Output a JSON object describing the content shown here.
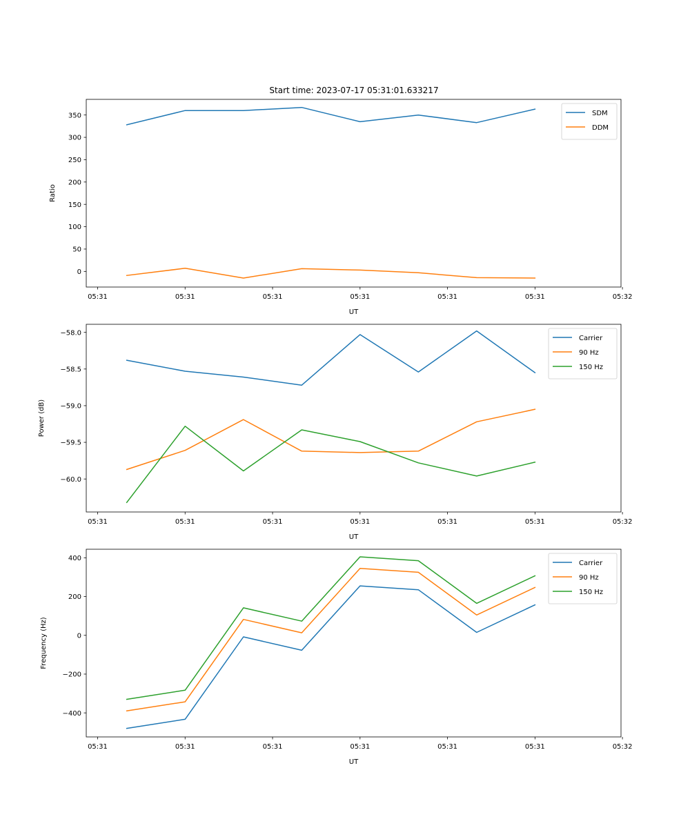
{
  "figure": {
    "title": "Start time: 2023-07-17 05:31:01.633217"
  },
  "colors": {
    "blue": "#1f77b4",
    "orange": "#ff7f0e",
    "green": "#2ca02c"
  },
  "chart_data": [
    {
      "id": "ratio",
      "type": "line",
      "title": "Start time: 2023-07-17 05:31:01.633217",
      "xlabel": "UT",
      "ylabel": "Ratio",
      "x": [
        1,
        2,
        3,
        4,
        5,
        6,
        7,
        8
      ],
      "xlim": [
        0.305,
        9.475
      ],
      "xticks": [
        0.5,
        2,
        3.5,
        5,
        6.5,
        8,
        9.5
      ],
      "xtick_labels": [
        "05:31",
        "05:31",
        "05:31",
        "05:31",
        "05:31",
        "05:31",
        "05:32"
      ],
      "ylim": [
        -35,
        385
      ],
      "yticks": [
        0,
        50,
        100,
        150,
        200,
        250,
        300,
        350
      ],
      "ytick_labels": [
        "0",
        "50",
        "100",
        "150",
        "200",
        "250",
        "300",
        "350"
      ],
      "legend": "top-right",
      "series": [
        {
          "name": "SDM",
          "color": "#1f77b4",
          "values": [
            328,
            360,
            360,
            367,
            335,
            350,
            333,
            363
          ]
        },
        {
          "name": "DDM",
          "color": "#ff7f0e",
          "values": [
            -9,
            7,
            -15,
            6,
            3,
            -3,
            -14,
            -15
          ]
        }
      ]
    },
    {
      "id": "power",
      "type": "line",
      "xlabel": "UT",
      "ylabel": "Power (dB)",
      "x": [
        1,
        2,
        3,
        4,
        5,
        6,
        7,
        8
      ],
      "xlim": [
        0.305,
        9.475
      ],
      "xticks": [
        0.5,
        2,
        3.5,
        5,
        6.5,
        8,
        9.5
      ],
      "xtick_labels": [
        "05:31",
        "05:31",
        "05:31",
        "05:31",
        "05:31",
        "05:31",
        "05:32"
      ],
      "ylim": [
        -60.45,
        -57.89
      ],
      "yticks": [
        -60.0,
        -59.5,
        -59.0,
        -58.5,
        -58.0
      ],
      "ytick_labels": [
        "−60.0",
        "−59.5",
        "−59.0",
        "−58.5",
        "−58.0"
      ],
      "legend": "top-right",
      "series": [
        {
          "name": "Carrier",
          "color": "#1f77b4",
          "values": [
            -58.38,
            -58.53,
            -58.61,
            -58.72,
            -58.03,
            -58.54,
            -57.98,
            -58.55
          ]
        },
        {
          "name": "90 Hz",
          "color": "#ff7f0e",
          "values": [
            -59.87,
            -59.61,
            -59.19,
            -59.62,
            -59.64,
            -59.62,
            -59.22,
            -59.05
          ]
        },
        {
          "name": "150 Hz",
          "color": "#2ca02c",
          "values": [
            -60.32,
            -59.28,
            -59.89,
            -59.33,
            -59.49,
            -59.78,
            -59.96,
            -59.77
          ]
        }
      ]
    },
    {
      "id": "frequency",
      "type": "line",
      "xlabel": "UT",
      "ylabel": "Frequency (Hz)",
      "x": [
        1,
        2,
        3,
        4,
        5,
        6,
        7,
        8
      ],
      "xlim": [
        0.305,
        9.475
      ],
      "xticks": [
        0.5,
        2,
        3.5,
        5,
        6.5,
        8,
        9.5
      ],
      "xtick_labels": [
        "05:31",
        "05:31",
        "05:31",
        "05:31",
        "05:31",
        "05:31",
        "05:32"
      ],
      "ylim": [
        -524,
        444
      ],
      "yticks": [
        -400,
        -200,
        0,
        200,
        400
      ],
      "ytick_labels": [
        "−400",
        "−200",
        "0",
        "200",
        "400"
      ],
      "legend": "top-right",
      "series": [
        {
          "name": "Carrier",
          "color": "#1f77b4",
          "values": [
            -480,
            -433,
            -8,
            -77,
            255,
            235,
            15,
            157
          ]
        },
        {
          "name": "90 Hz",
          "color": "#ff7f0e",
          "values": [
            -390,
            -343,
            82,
            13,
            345,
            325,
            105,
            247
          ]
        },
        {
          "name": "150 Hz",
          "color": "#2ca02c",
          "values": [
            -330,
            -283,
            142,
            73,
            405,
            385,
            165,
            307
          ]
        }
      ]
    }
  ]
}
